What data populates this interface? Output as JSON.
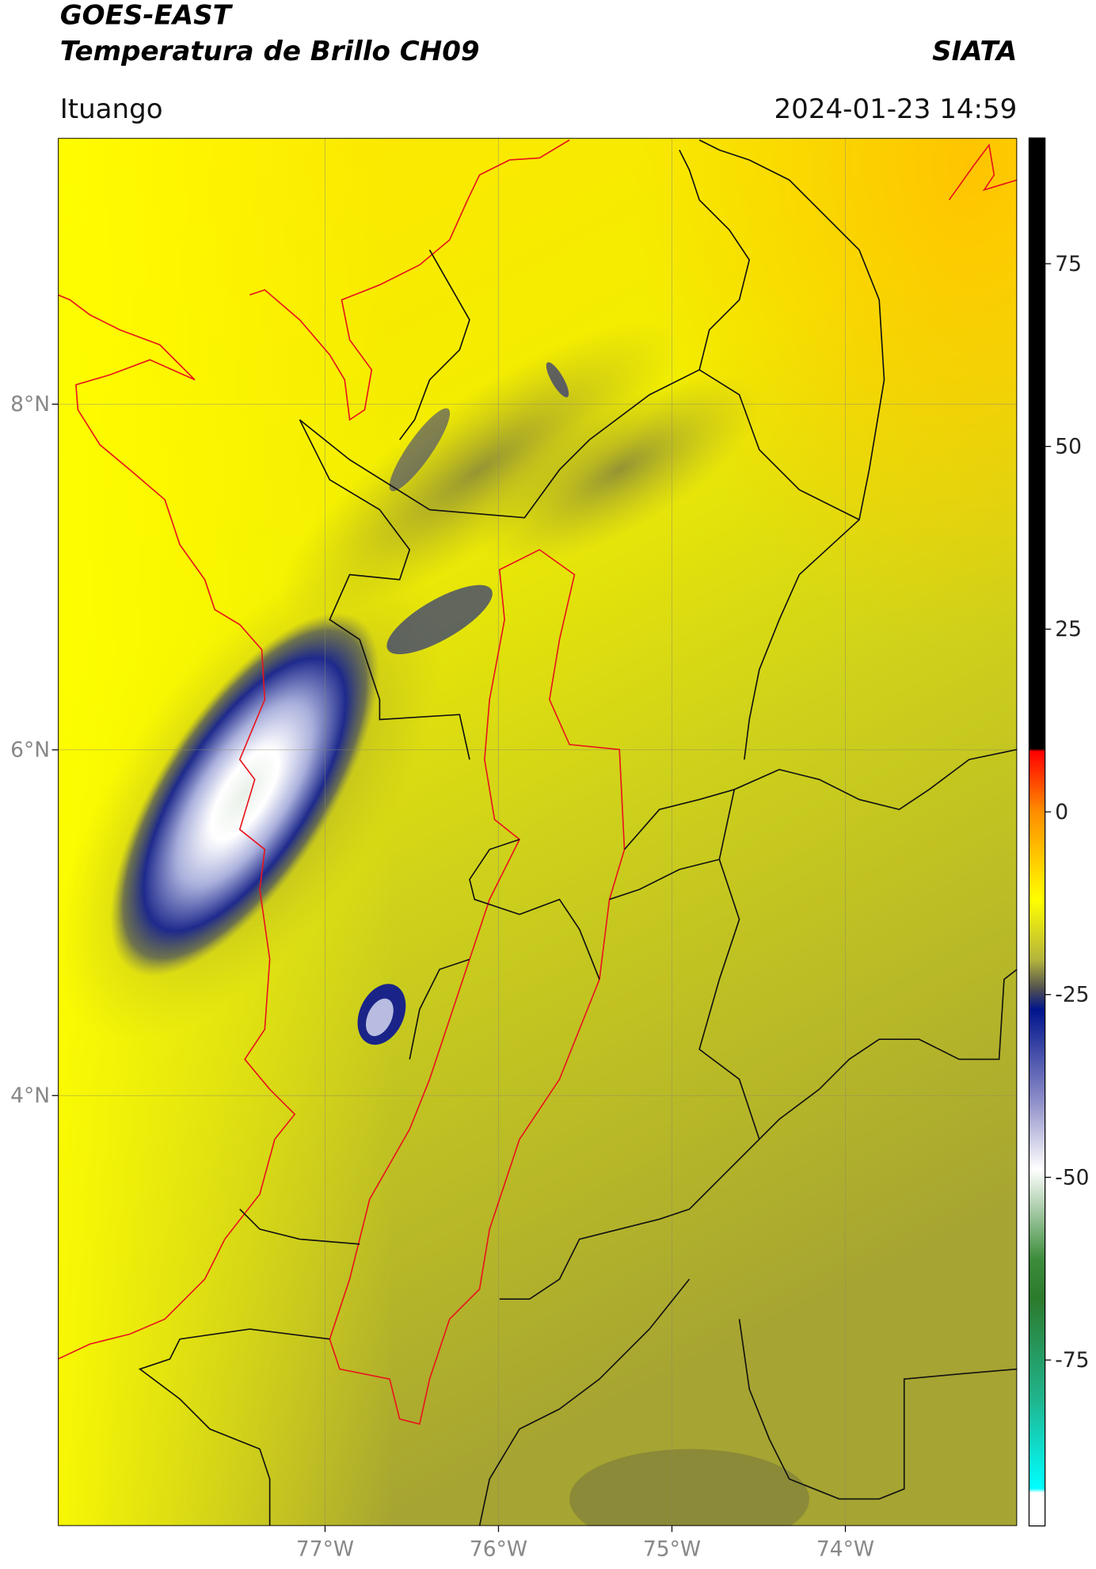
{
  "header": {
    "title": "GOES-EAST",
    "subtitle": "Temperatura de Brillo CH09",
    "brand": "SIATA",
    "location": "Ituango",
    "timestamp": "2024-01-23 14:59"
  },
  "map": {
    "type": "map",
    "xlim": [
      -78.54,
      -73.01
    ],
    "ylim": [
      1.51,
      9.54
    ],
    "xticks": [
      {
        "value": -77,
        "label": "77°W"
      },
      {
        "value": -76,
        "label": "76°W"
      },
      {
        "value": -75,
        "label": "75°W"
      },
      {
        "value": -74,
        "label": "74°W"
      }
    ],
    "yticks": [
      {
        "value": 8,
        "label": "8°N"
      },
      {
        "value": 6,
        "label": "6°N"
      },
      {
        "value": 4,
        "label": "4°N"
      }
    ],
    "grid": true
  },
  "colorbar": {
    "ylim": [
      -97.7,
      92.2
    ],
    "yticks": [
      75,
      50,
      25,
      0,
      -25,
      -50,
      -75
    ]
  }
}
